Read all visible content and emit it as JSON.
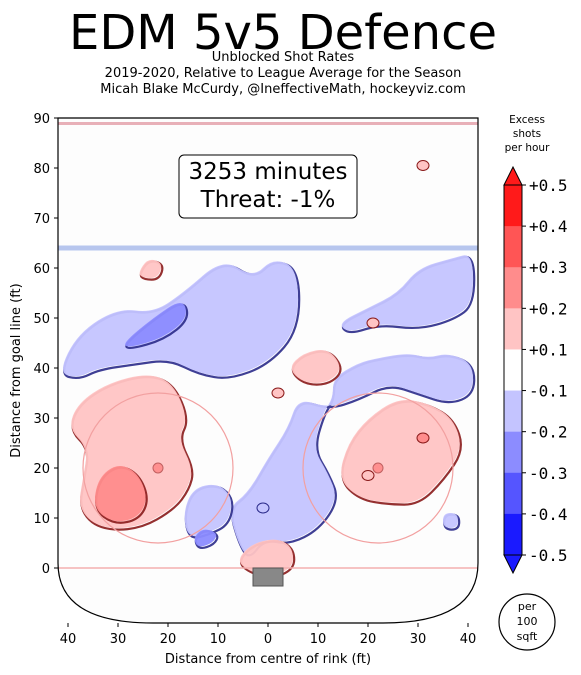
{
  "title": "EDM 5v5 Defence",
  "subtitle": [
    "Unblocked Shot Rates",
    "2019-2020, Relative to League Average for the Season",
    "Micah Blake McCurdy, @IneffectiveMath, hockeyviz.com"
  ],
  "annotation": [
    "3253 minutes",
    "Threat: -1%"
  ],
  "colorbar": {
    "title": [
      "Excess",
      "shots",
      "per hour"
    ],
    "ticks": [
      "+0.5",
      "+0.4",
      "+0.3",
      "+0.2",
      "+0.1",
      "-0.1",
      "-0.2",
      "-0.3",
      "-0.4",
      "-0.5"
    ],
    "colors": [
      "#ff1a1a",
      "#ff5555",
      "#ff8c8c",
      "#ffc4c4",
      "#ffffff",
      "#c4c4ff",
      "#8c8cff",
      "#5555ff",
      "#1a1aff"
    ]
  },
  "per_label": [
    "per",
    "100",
    "sqft"
  ],
  "chart_data": {
    "type": "heatmap",
    "title": "EDM 5v5 Defence",
    "xlabel": "Distance from centre of rink (ft)",
    "ylabel": "Distance from goal line (ft)",
    "xlim": [
      -42,
      42
    ],
    "ylim": [
      -11,
      90
    ],
    "x_ticks": [
      "40",
      "30",
      "20",
      "10",
      "0",
      "10",
      "20",
      "30",
      "40"
    ],
    "x_tick_values": [
      -40,
      -30,
      -20,
      -10,
      0,
      10,
      20,
      30,
      40
    ],
    "y_ticks": [
      "0",
      "10",
      "20",
      "30",
      "40",
      "50",
      "60",
      "70",
      "80",
      "90"
    ],
    "y_tick_values": [
      0,
      10,
      20,
      30,
      40,
      50,
      60,
      70,
      80,
      90
    ],
    "grid": false,
    "regions": [
      {
        "level": "-0.2",
        "outline": [
          [
            -42,
            39
          ],
          [
            -38,
            47
          ],
          [
            -30,
            52
          ],
          [
            -23,
            51
          ],
          [
            -17,
            55
          ],
          [
            -9,
            62
          ],
          [
            -3,
            58
          ],
          [
            1,
            62
          ],
          [
            6,
            60
          ],
          [
            6,
            48
          ],
          [
            0,
            41
          ],
          [
            -8,
            38
          ],
          [
            -14,
            39
          ],
          [
            -20,
            42
          ],
          [
            -27,
            41
          ],
          [
            -34,
            40
          ],
          [
            -38,
            38
          ]
        ]
      },
      {
        "level": "-0.3",
        "outline": [
          [
            -29,
            45
          ],
          [
            -23,
            50
          ],
          [
            -17,
            54
          ],
          [
            -16,
            50
          ],
          [
            -21,
            46
          ],
          [
            -28,
            44
          ]
        ]
      },
      {
        "level": "-0.2",
        "outline": [
          [
            14,
            49
          ],
          [
            20,
            52
          ],
          [
            26,
            55
          ],
          [
            30,
            60
          ],
          [
            37,
            62
          ],
          [
            41,
            63
          ],
          [
            41,
            53
          ],
          [
            37,
            50
          ],
          [
            30,
            48
          ],
          [
            22,
            49
          ],
          [
            16,
            47
          ]
        ]
      },
      {
        "level": "-0.2",
        "outline": [
          [
            13,
            38
          ],
          [
            18,
            41
          ],
          [
            22,
            42
          ],
          [
            28,
            43
          ],
          [
            32,
            42
          ],
          [
            36,
            43
          ],
          [
            41,
            41
          ],
          [
            41,
            35
          ],
          [
            36,
            33
          ],
          [
            30,
            35
          ],
          [
            24,
            37
          ],
          [
            18,
            34
          ],
          [
            12,
            32
          ],
          [
            6,
            34
          ],
          [
            4,
            28
          ],
          [
            0,
            22
          ],
          [
            -4,
            15
          ],
          [
            -8,
            12
          ],
          [
            -6,
            5
          ],
          [
            -4,
            2
          ],
          [
            -1,
            6
          ],
          [
            4,
            5
          ],
          [
            10,
            8
          ],
          [
            14,
            14
          ],
          [
            12,
            19
          ],
          [
            9,
            24
          ],
          [
            11,
            31
          ],
          [
            13,
            34
          ]
        ]
      },
      {
        "level": "-0.2",
        "outline": [
          [
            -16,
            6
          ],
          [
            -12,
            7
          ],
          [
            -8,
            9
          ],
          [
            -7,
            14
          ],
          [
            -10,
            17
          ],
          [
            -15,
            16
          ],
          [
            -17,
            11
          ]
        ]
      },
      {
        "level": "-0.3",
        "outline": [
          [
            -14,
            4
          ],
          [
            -11,
            5
          ],
          [
            -10,
            7
          ],
          [
            -13,
            8
          ],
          [
            -15,
            6
          ]
        ]
      },
      {
        "level": "-0.2",
        "outline": [
          [
            35,
            8
          ],
          [
            38,
            8
          ],
          [
            38,
            11
          ],
          [
            35,
            11
          ]
        ]
      },
      {
        "level": "+0.2",
        "outline": [
          [
            -40,
            28
          ],
          [
            -38,
            33
          ],
          [
            -32,
            37
          ],
          [
            -24,
            39
          ],
          [
            -19,
            37
          ],
          [
            -16,
            30
          ],
          [
            -18,
            26
          ],
          [
            -15,
            20
          ],
          [
            -16,
            16
          ],
          [
            -19,
            12
          ],
          [
            -26,
            8
          ],
          [
            -34,
            8
          ],
          [
            -38,
            12
          ],
          [
            -37,
            18
          ],
          [
            -36,
            24
          ]
        ]
      },
      {
        "level": "+0.3",
        "outline": [
          [
            -34,
            18
          ],
          [
            -30,
            21
          ],
          [
            -26,
            19
          ],
          [
            -24,
            14
          ],
          [
            -26,
            10
          ],
          [
            -31,
            9
          ],
          [
            -35,
            12
          ]
        ]
      },
      {
        "level": "+0.2",
        "outline": [
          [
            16,
            25
          ],
          [
            20,
            30
          ],
          [
            26,
            34
          ],
          [
            32,
            33
          ],
          [
            37,
            30
          ],
          [
            39,
            24
          ],
          [
            35,
            18
          ],
          [
            30,
            13
          ],
          [
            24,
            13
          ],
          [
            18,
            14
          ],
          [
            14,
            18
          ]
        ]
      },
      {
        "level": "+0.2",
        "outline": [
          [
            4,
            40
          ],
          [
            7,
            43
          ],
          [
            12,
            44
          ],
          [
            15,
            40
          ],
          [
            12,
            37
          ],
          [
            7,
            37
          ]
        ]
      },
      {
        "level": "+0.2",
        "outline": [
          [
            -6,
            2
          ],
          [
            -3,
            5
          ],
          [
            2,
            6
          ],
          [
            5,
            4
          ],
          [
            5,
            0
          ],
          [
            0,
            -2
          ],
          [
            -5,
            0
          ]
        ]
      },
      {
        "level": "+0.2",
        "outline": [
          [
            -26,
            59
          ],
          [
            -24,
            62
          ],
          [
            -21,
            61
          ],
          [
            -22,
            58
          ],
          [
            -25,
            58
          ]
        ]
      }
    ]
  }
}
